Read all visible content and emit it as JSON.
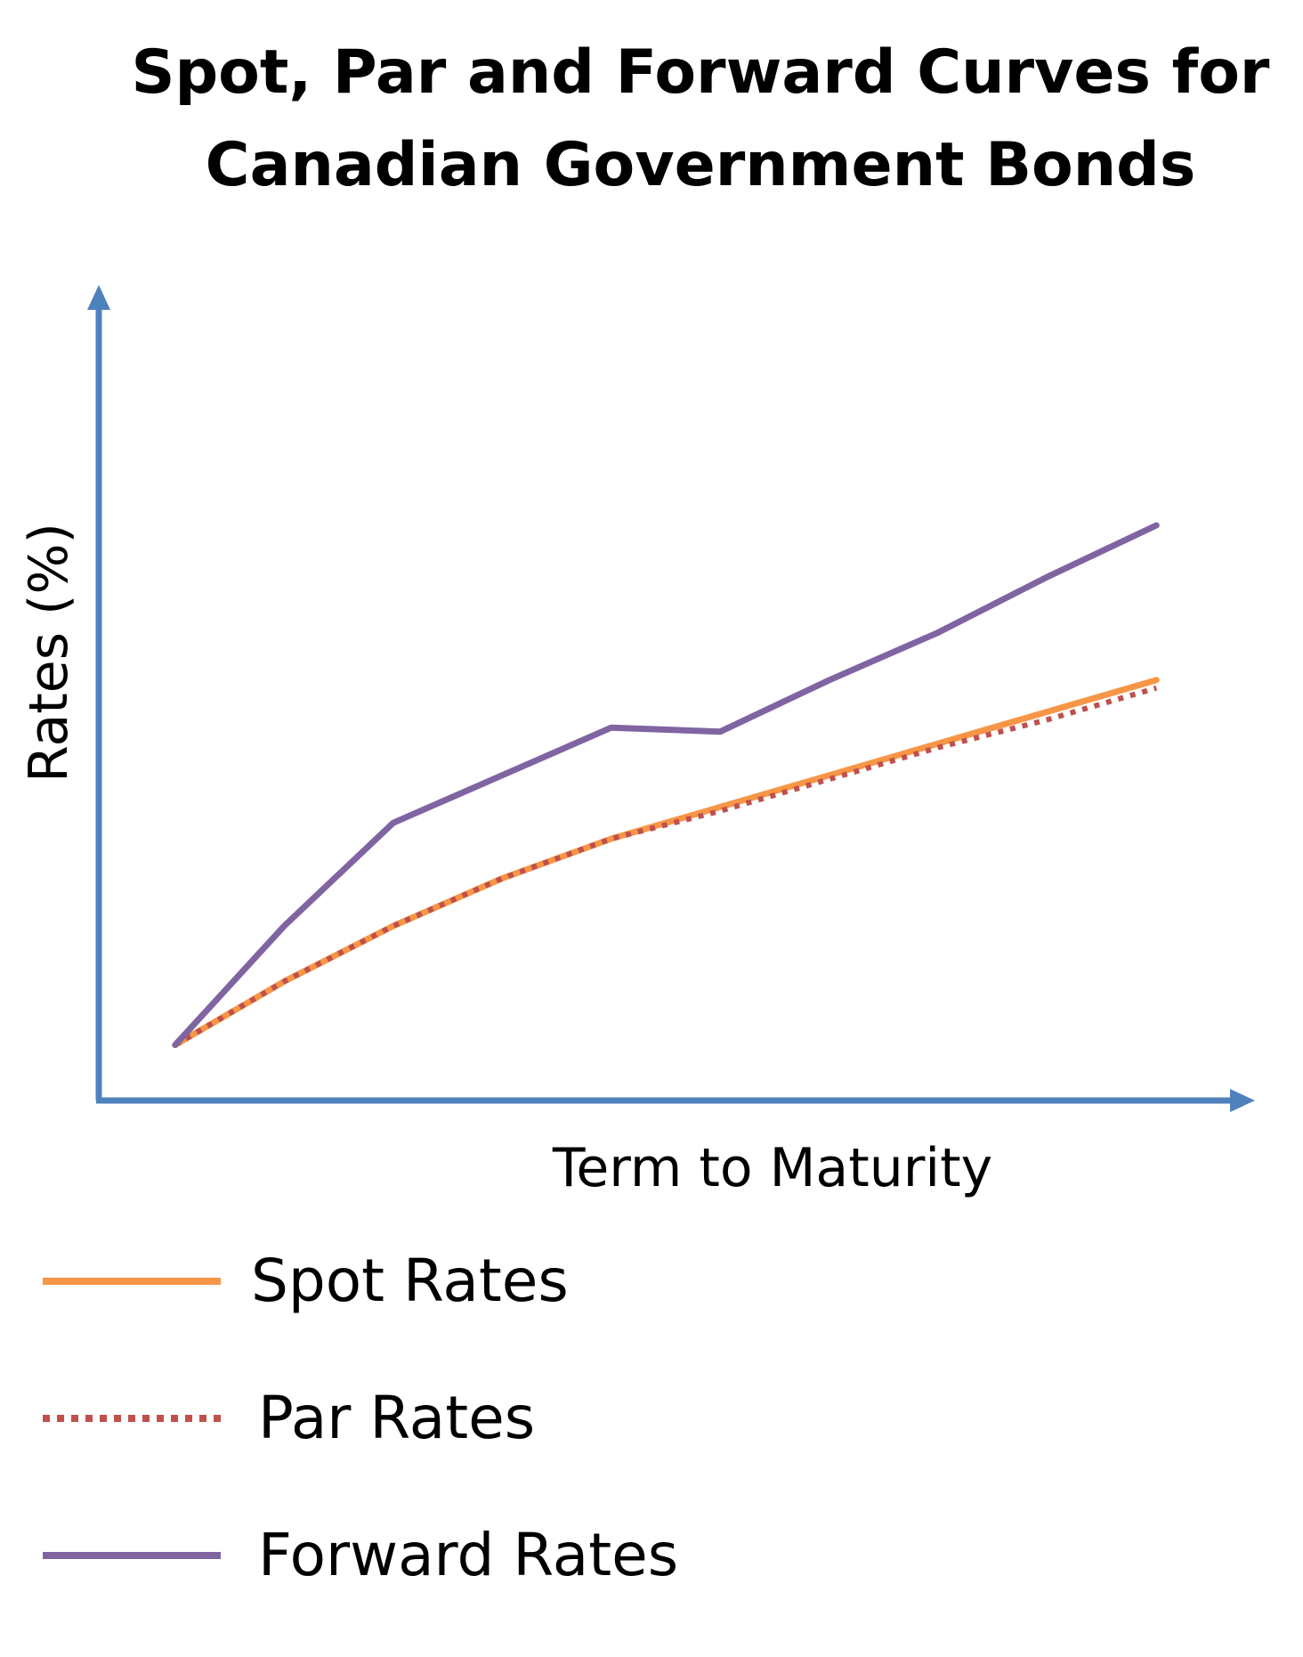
{
  "chart_data": {
    "type": "line",
    "title_lines": [
      "Spot, Par and Forward Curves for",
      "Canadian Government Bonds"
    ],
    "xlabel": "Term to Maturity",
    "ylabel": "Rates (%)",
    "x": [
      0,
      1,
      2,
      3,
      4,
      5,
      6,
      7,
      8,
      9
    ],
    "xlim": [
      -0.7,
      9.7
    ],
    "ylim": [
      0,
      100
    ],
    "series": [
      {
        "name": "Spot Rates",
        "color": "#F79646",
        "style": "solid",
        "values": [
          7,
          15,
          22,
          28,
          33,
          37,
          41,
          45,
          49,
          53
        ]
      },
      {
        "name": "Par Rates",
        "color": "#C0504D",
        "style": "dotted",
        "values": [
          7,
          15,
          22,
          28,
          33,
          36.5,
          40.5,
          44.5,
          48,
          52
        ]
      },
      {
        "name": "Forward Rates",
        "color": "#8064A2",
        "style": "solid",
        "values": [
          7,
          22,
          35,
          41,
          47,
          46.5,
          53,
          59,
          66,
          72.5
        ]
      }
    ],
    "grid": false,
    "legend_position": "bottom-left",
    "axis_color": "#4F81BD"
  }
}
